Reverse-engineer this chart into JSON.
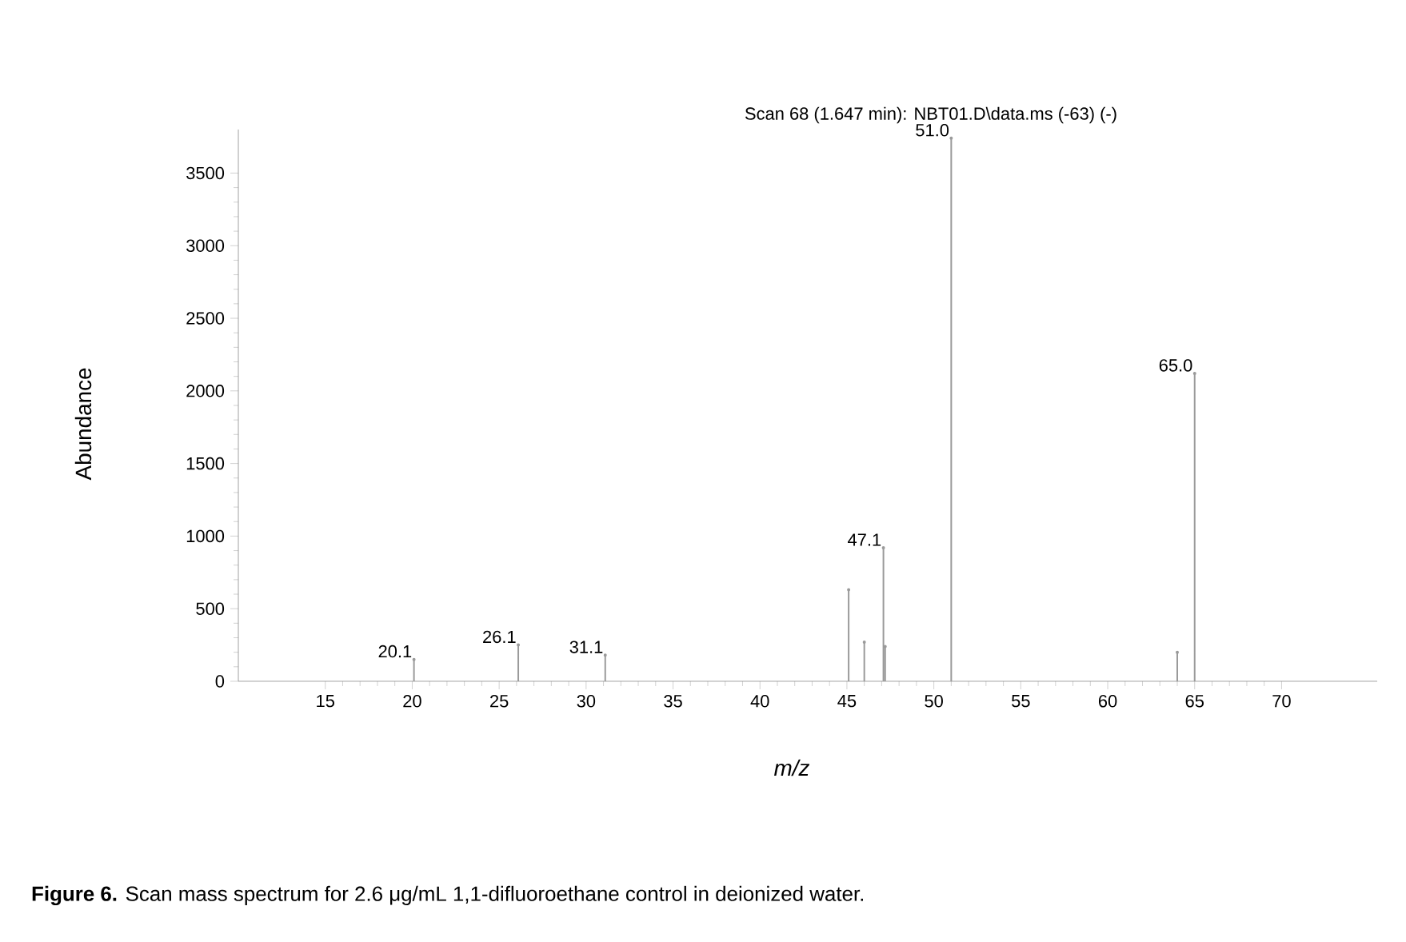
{
  "chart_data": {
    "type": "lollipop",
    "title": "Scan 68 (1.647 min): NBT01.D\\data.ms (-63) (-)",
    "xlabel": "m/z",
    "ylabel": "Abundance",
    "color": "#9a9a9a",
    "x": [
      20.1,
      26.1,
      31.1,
      45.1,
      46.0,
      47.1,
      47.2,
      51.0,
      64.0,
      65.0
    ],
    "values": [
      150,
      250,
      180,
      630,
      270,
      920,
      240,
      3740,
      200,
      2120
    ],
    "xlim": [
      10,
      75.5
    ],
    "xticks": [
      15,
      20,
      25,
      30,
      35,
      40,
      45,
      50,
      55,
      60,
      65,
      70
    ],
    "ylim": [
      0,
      3800
    ],
    "yticks": [
      0,
      500,
      1000,
      1500,
      2000,
      2500,
      3000,
      3500
    ],
    "annotations": [
      {
        "text": "20.1",
        "x": 20.1,
        "y": 150
      },
      {
        "text": "26.1",
        "x": 26.1,
        "y": 250
      },
      {
        "text": "31.1",
        "x": 31.1,
        "y": 180
      },
      {
        "text": "47.1",
        "x": 47.1,
        "y": 920
      },
      {
        "text": "51.0",
        "x": 51.0,
        "y": 3740
      },
      {
        "text": "65.0",
        "x": 65.0,
        "y": 2120
      },
      "**Figure 6.** Scan mass spectrum for 2.6 μg/mL 1,1-difluoroethane control in deionized water."
    ]
  }
}
